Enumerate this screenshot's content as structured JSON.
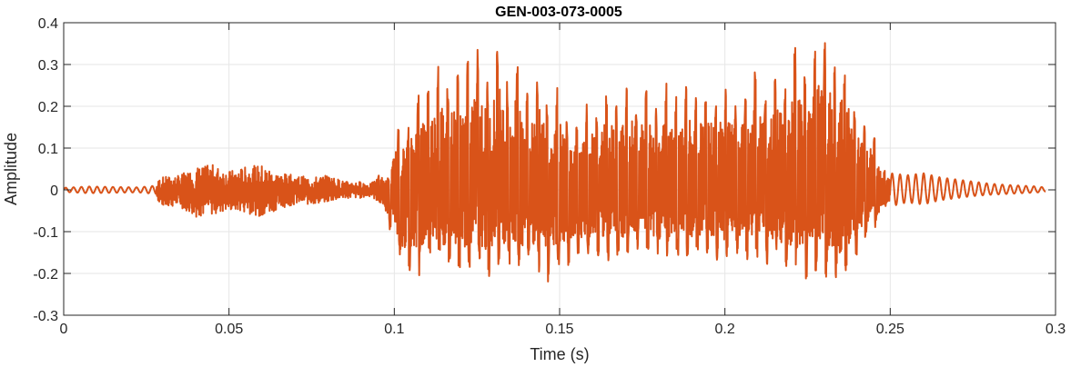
{
  "chart_data": {
    "type": "line",
    "title": "GEN-003-073-0005",
    "xlabel": "Time (s)",
    "ylabel": "Amplitude",
    "xlim": [
      0,
      0.3
    ],
    "ylim": [
      -0.3,
      0.4
    ],
    "xticks": [
      0,
      0.05,
      0.1,
      0.15,
      0.2,
      0.25,
      0.3
    ],
    "xtick_labels": [
      "0",
      "0.05",
      "0.1",
      "0.15",
      "0.2",
      "0.25",
      "0.3"
    ],
    "yticks": [
      -0.3,
      -0.2,
      -0.1,
      0,
      0.1,
      0.2,
      0.3,
      0.4
    ],
    "ytick_labels": [
      "-0.3",
      "-0.2",
      "-0.1",
      "0",
      "0.1",
      "0.2",
      "0.3",
      "0.4"
    ],
    "grid": true,
    "line_color": "#D95319",
    "grid_color": "#E6E6E6",
    "axes_color": "#262626",
    "series": [
      {
        "x": [
          0,
          0.0075,
          0.015,
          0.0225,
          0.028,
          0.029,
          0.035,
          0.04,
          0.045,
          0.05,
          0.055,
          0.06,
          0.065,
          0.07,
          0.075,
          0.08,
          0.085,
          0.09,
          0.093,
          0.095,
          0.096,
          0.0985,
          0.1,
          0.101,
          0.104,
          0.1075,
          0.1105,
          0.1135,
          0.1165,
          0.1195,
          0.1225,
          0.1255,
          0.1285,
          0.1315,
          0.1345,
          0.1375,
          0.1405,
          0.1435,
          0.1465,
          0.1495,
          0.1525,
          0.1555,
          0.1585,
          0.1615,
          0.1645,
          0.1675,
          0.1705,
          0.1735,
          0.1765,
          0.1795,
          0.1825,
          0.1855,
          0.1885,
          0.1915,
          0.1945,
          0.1975,
          0.2005,
          0.2035,
          0.2065,
          0.2095,
          0.2125,
          0.2155,
          0.2185,
          0.2215,
          0.2245,
          0.2275,
          0.2305,
          0.2335,
          0.2365,
          0.2395,
          0.2425,
          0.2455,
          0.248,
          0.25,
          0.255,
          0.26,
          0.265,
          0.27,
          0.275,
          0.28,
          0.285,
          0.29,
          0.295,
          0.297
        ],
        "envelope_high": [
          0.005,
          0.008,
          0.007,
          0.006,
          0.01,
          0.03,
          0.035,
          0.055,
          0.06,
          0.045,
          0.055,
          0.06,
          0.04,
          0.035,
          0.03,
          0.035,
          0.02,
          0.02,
          0.015,
          0.03,
          0.045,
          0.025,
          0.13,
          0.145,
          0.15,
          0.24,
          0.25,
          0.3,
          0.27,
          0.29,
          0.31,
          0.34,
          0.26,
          0.37,
          0.25,
          0.33,
          0.22,
          0.29,
          0.2,
          0.25,
          0.16,
          0.15,
          0.22,
          0.17,
          0.25,
          0.2,
          0.26,
          0.21,
          0.25,
          0.19,
          0.26,
          0.22,
          0.25,
          0.22,
          0.24,
          0.22,
          0.26,
          0.2,
          0.25,
          0.3,
          0.21,
          0.29,
          0.24,
          0.35,
          0.26,
          0.38,
          0.36,
          0.3,
          0.32,
          0.21,
          0.15,
          0.13,
          0.05,
          0.04,
          0.035,
          0.04,
          0.03,
          0.025,
          0.02,
          0.015,
          0.012,
          0.01,
          0.008,
          0.005
        ],
        "envelope_low": [
          -0.005,
          -0.008,
          -0.007,
          -0.006,
          -0.01,
          -0.04,
          -0.04,
          -0.065,
          -0.06,
          -0.05,
          -0.055,
          -0.065,
          -0.045,
          -0.035,
          -0.035,
          -0.03,
          -0.02,
          -0.02,
          -0.015,
          -0.03,
          -0.04,
          -0.1,
          -0.09,
          -0.19,
          -0.2,
          -0.21,
          -0.15,
          -0.2,
          -0.18,
          -0.19,
          -0.2,
          -0.19,
          -0.21,
          -0.19,
          -0.18,
          -0.21,
          -0.17,
          -0.2,
          -0.22,
          -0.18,
          -0.19,
          -0.18,
          -0.16,
          -0.16,
          -0.17,
          -0.16,
          -0.17,
          -0.15,
          -0.15,
          -0.17,
          -0.16,
          -0.16,
          -0.17,
          -0.16,
          -0.15,
          -0.17,
          -0.17,
          -0.15,
          -0.17,
          -0.16,
          -0.18,
          -0.17,
          -0.2,
          -0.19,
          -0.22,
          -0.2,
          -0.21,
          -0.22,
          -0.21,
          -0.17,
          -0.12,
          -0.1,
          -0.05,
          -0.04,
          -0.03,
          -0.035,
          -0.025,
          -0.02,
          -0.015,
          -0.012,
          -0.01,
          -0.008,
          -0.006,
          -0.004
        ]
      }
    ]
  }
}
